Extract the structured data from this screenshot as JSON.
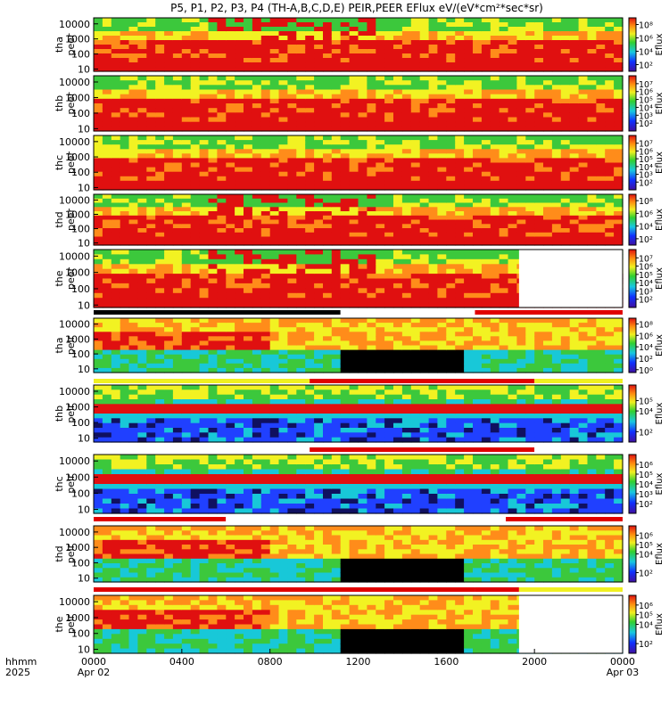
{
  "title": "P5, P1, P2, P3, P4 (TH-A,B,C,D,E) PEIR,PEER EFlux eV/(eV*cm²*sec*sr)",
  "chart_data": {
    "type": "heatmap",
    "x_ticks": [
      "0000",
      "0400",
      "0800",
      "1200",
      "1600",
      "2000",
      "0000"
    ],
    "x_tick_hours": [
      0,
      4,
      8,
      12,
      16,
      20,
      24
    ],
    "date_labels": [
      "Apr 02",
      "Apr 03"
    ],
    "x_axis_header": [
      "hhmm",
      "2025"
    ],
    "y_ticks": [
      "10",
      "100",
      "1000",
      "10000"
    ],
    "y_scale": "log",
    "colorbar_label": "Eflux",
    "panels": [
      {
        "label1": "tha",
        "label2": "peer",
        "cb_ticks": [
          "10⁸",
          "10⁶",
          "10⁴",
          "10²"
        ],
        "cb_exps": [
          8,
          6,
          4,
          2
        ],
        "cb_range": [
          1,
          9
        ]
      },
      {
        "label1": "thb",
        "label2": "peer",
        "cb_ticks": [
          "10⁷",
          "10⁶",
          "10⁵",
          "10⁴",
          "10³",
          "10²"
        ],
        "cb_exps": [
          7,
          6,
          5,
          4,
          3,
          2
        ],
        "cb_range": [
          1,
          8
        ]
      },
      {
        "label1": "thc",
        "label2": "peer",
        "cb_ticks": [
          "10⁷",
          "10⁶",
          "10⁵",
          "10⁴",
          "10³",
          "10²"
        ],
        "cb_exps": [
          7,
          6,
          5,
          4,
          3,
          2
        ],
        "cb_range": [
          1,
          8
        ]
      },
      {
        "label1": "thd",
        "label2": "peer",
        "cb_ticks": [
          "10⁸",
          "10⁶",
          "10⁴",
          "10²"
        ],
        "cb_exps": [
          8,
          6,
          4,
          2
        ],
        "cb_range": [
          1,
          9
        ]
      },
      {
        "label1": "the",
        "label2": "peer",
        "cb_ticks": [
          "10⁷",
          "10⁶",
          "10⁵",
          "10⁴",
          "10³",
          "10²"
        ],
        "cb_exps": [
          7,
          6,
          5,
          4,
          3,
          2
        ],
        "cb_range": [
          1,
          8
        ]
      },
      {
        "label1": "tha",
        "label2": "peir",
        "cb_ticks": [
          "10⁸",
          "10⁶",
          "10⁴",
          "10²",
          "10⁰"
        ],
        "cb_exps": [
          8,
          6,
          4,
          2,
          0
        ],
        "cb_range": [
          -0.5,
          9
        ]
      },
      {
        "label1": "thb",
        "label2": "peir",
        "cb_ticks": [
          "10⁵",
          "10⁴",
          "10²"
        ],
        "cb_exps": [
          5,
          4,
          2
        ],
        "cb_range": [
          1,
          6.5
        ]
      },
      {
        "label1": "thc",
        "label2": "peir",
        "cb_ticks": [
          "10⁶",
          "10⁵",
          "10⁴",
          "10³",
          "10²"
        ],
        "cb_exps": [
          6,
          5,
          4,
          3,
          2
        ],
        "cb_range": [
          1,
          7
        ]
      },
      {
        "label1": "thd",
        "label2": "peir",
        "cb_ticks": [
          "10⁶",
          "10⁵",
          "10⁴",
          "10²"
        ],
        "cb_exps": [
          6,
          5,
          4,
          2
        ],
        "cb_range": [
          1,
          7
        ]
      },
      {
        "label1": "the",
        "label2": "peir",
        "cb_ticks": [
          "10⁶",
          "10⁵",
          "10⁴",
          "10²"
        ],
        "cb_exps": [
          6,
          5,
          4,
          2
        ],
        "cb_range": [
          1,
          7
        ]
      }
    ],
    "data_gap_hours": [
      [
        19.3,
        24
      ],
      [
        19.3,
        24
      ]
    ],
    "colors": {
      "red": "#e01010",
      "orange": "#ff8c1a",
      "yellow": "#f2f222",
      "green": "#3cc83c",
      "cyan": "#18c8d8",
      "blue": "#2040ff",
      "dark_blue": "#101060",
      "black": "#000000",
      "bar_red": "#e00000",
      "bar_yellow": "#f0f020"
    }
  }
}
